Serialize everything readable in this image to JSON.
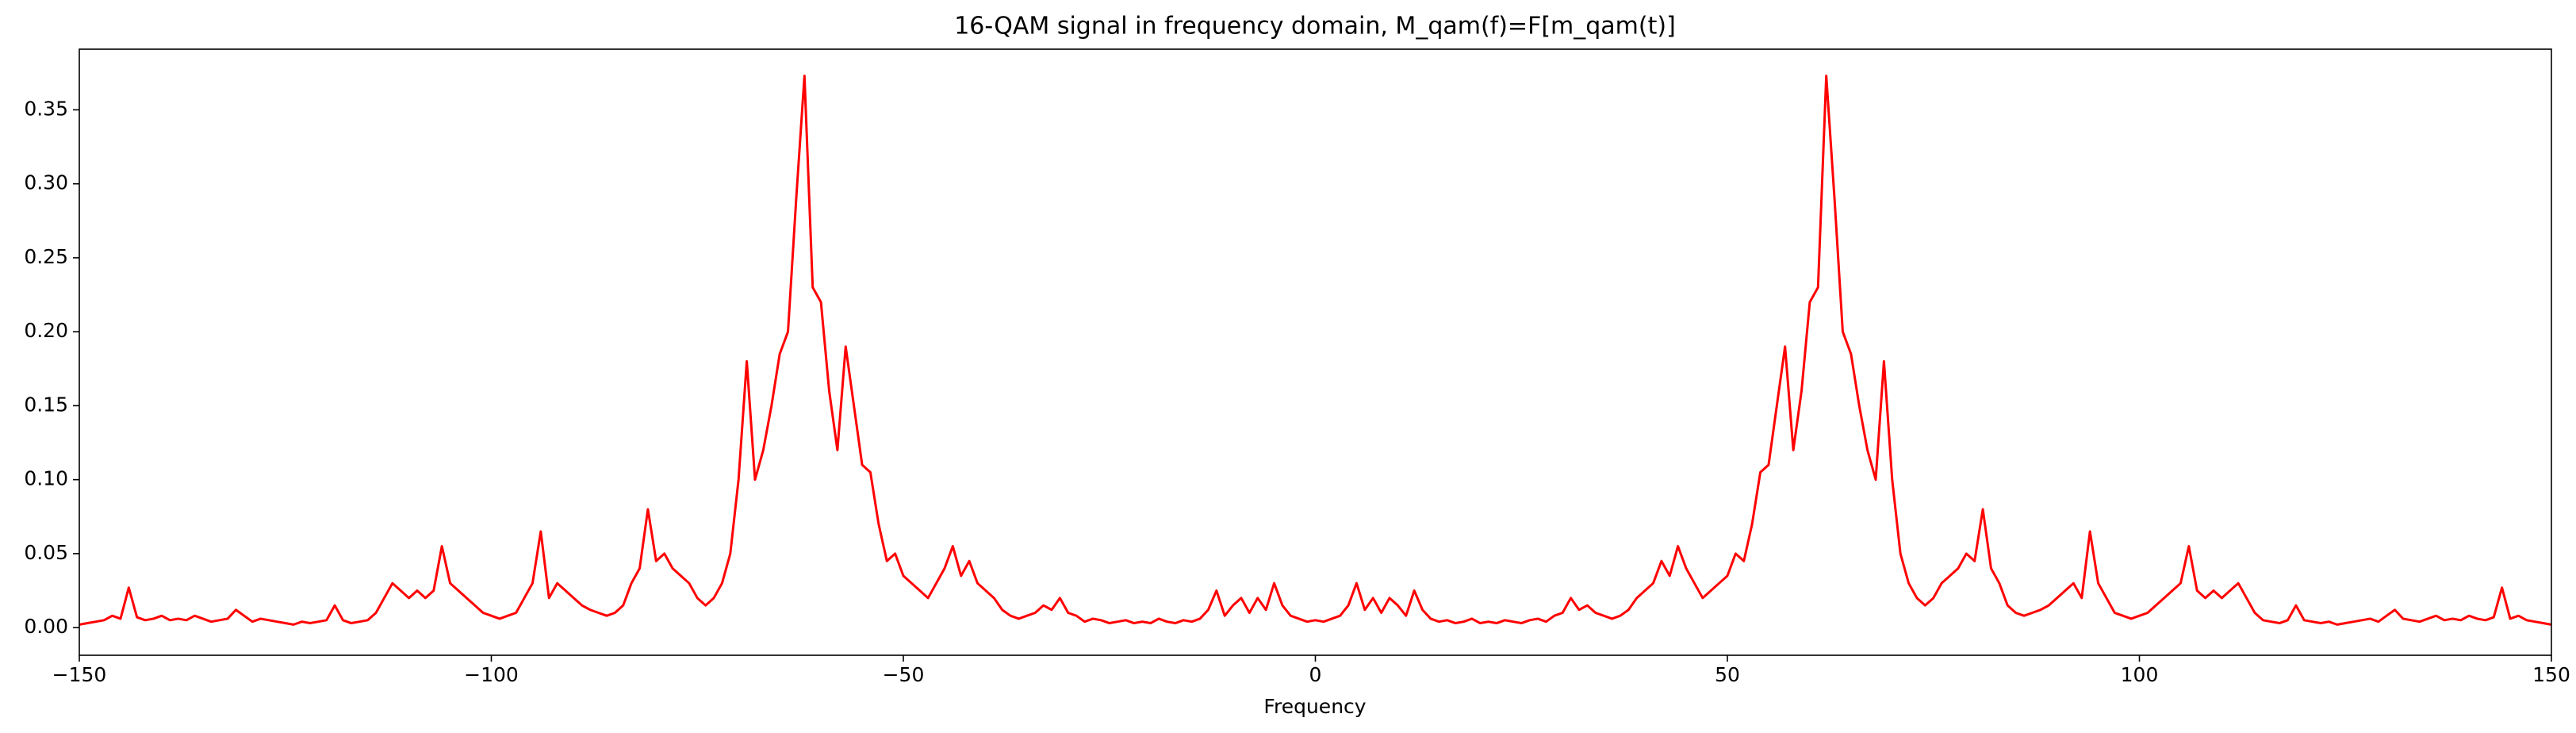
{
  "chart_data": {
    "type": "line",
    "title": "16-QAM signal in frequency domain, M_qam(f)=F[m_qam(t)]",
    "xlabel": "Frequency",
    "color": "#ff0000",
    "xlim": [
      -150,
      150
    ],
    "ylim": [
      -0.0187,
      0.391
    ],
    "xticks": [
      {
        "value": -150,
        "label": "−150"
      },
      {
        "value": -100,
        "label": "−100"
      },
      {
        "value": -50,
        "label": "−50"
      },
      0,
      50,
      100,
      150
    ],
    "yticks": [
      {
        "value": 0,
        "label": "0.00"
      },
      {
        "value": 0.05,
        "label": "0.05"
      },
      {
        "value": 0.1,
        "label": "0.10"
      },
      {
        "value": 0.15,
        "label": "0.15"
      },
      {
        "value": 0.2,
        "label": "0.20"
      },
      {
        "value": 0.25,
        "label": "0.25"
      },
      {
        "value": 0.3,
        "label": "0.30"
      },
      {
        "value": 0.35,
        "label": "0.35"
      }
    ],
    "x": [
      -150,
      -149,
      -148,
      -147,
      -146,
      -145,
      -144,
      -143,
      -142,
      -141,
      -140,
      -139,
      -138,
      -137,
      -136,
      -135,
      -134,
      -133,
      -132,
      -131,
      -130,
      -129,
      -128,
      -127,
      -126,
      -125,
      -124,
      -123,
      -122,
      -121,
      -120,
      -119,
      -118,
      -117,
      -116,
      -115,
      -114,
      -113,
      -112,
      -111,
      -110,
      -109,
      -108,
      -107,
      -106,
      -105,
      -104,
      -103,
      -102,
      -101,
      -100,
      -99,
      -98,
      -97,
      -96,
      -95,
      -94,
      -93,
      -92,
      -91,
      -90,
      -89,
      -88,
      -87,
      -86,
      -85,
      -84,
      -83,
      -82,
      -81,
      -80,
      -79,
      -78,
      -77,
      -76,
      -75,
      -74,
      -73,
      -72,
      -71,
      -70,
      -69,
      -68,
      -67,
      -66,
      -65,
      -64,
      -63,
      -62,
      -61,
      -60,
      -59,
      -58,
      -57,
      -56,
      -55,
      -54,
      -53,
      -52,
      -51,
      -50,
      -49,
      -48,
      -47,
      -46,
      -45,
      -44,
      -43,
      -42,
      -41,
      -40,
      -39,
      -38,
      -37,
      -36,
      -35,
      -34,
      -33,
      -32,
      -31,
      -30,
      -29,
      -28,
      -27,
      -26,
      -25,
      -24,
      -23,
      -22,
      -21,
      -20,
      -19,
      -18,
      -17,
      -16,
      -15,
      -14,
      -13,
      -12,
      -11,
      -10,
      -9,
      -8,
      -7,
      -6,
      -5,
      -4,
      -3,
      -2,
      -1,
      0,
      1,
      2,
      3,
      4,
      5,
      6,
      7,
      8,
      9,
      10,
      11,
      12,
      13,
      14,
      15,
      16,
      17,
      18,
      19,
      20,
      21,
      22,
      23,
      24,
      25,
      26,
      27,
      28,
      29,
      30,
      31,
      32,
      33,
      34,
      35,
      36,
      37,
      38,
      39,
      40,
      41,
      42,
      43,
      44,
      45,
      46,
      47,
      48,
      49,
      50,
      51,
      52,
      53,
      54,
      55,
      56,
      57,
      58,
      59,
      60,
      61,
      62,
      63,
      64,
      65,
      66,
      67,
      68,
      69,
      70,
      71,
      72,
      73,
      74,
      75,
      76,
      77,
      78,
      79,
      80,
      81,
      82,
      83,
      84,
      85,
      86,
      87,
      88,
      89,
      90,
      91,
      92,
      93,
      94,
      95,
      96,
      97,
      98,
      99,
      100,
      101,
      102,
      103,
      104,
      105,
      106,
      107,
      108,
      109,
      110,
      111,
      112,
      113,
      114,
      115,
      116,
      117,
      118,
      119,
      120,
      121,
      122,
      123,
      124,
      125,
      126,
      127,
      128,
      129,
      130,
      131,
      132,
      133,
      134,
      135,
      136,
      137,
      138,
      139,
      140,
      141,
      142,
      143,
      144,
      145,
      146,
      147,
      148,
      149,
      150
    ],
    "values": [
      0.002,
      0.003,
      0.004,
      0.005,
      0.008,
      0.006,
      0.027,
      0.007,
      0.005,
      0.006,
      0.008,
      0.005,
      0.006,
      0.005,
      0.008,
      0.006,
      0.004,
      0.005,
      0.006,
      0.012,
      0.008,
      0.004,
      0.006,
      0.005,
      0.004,
      0.003,
      0.002,
      0.004,
      0.003,
      0.004,
      0.005,
      0.015,
      0.005,
      0.003,
      0.004,
      0.005,
      0.01,
      0.02,
      0.03,
      0.025,
      0.02,
      0.025,
      0.02,
      0.025,
      0.055,
      0.03,
      0.025,
      0.02,
      0.015,
      0.01,
      0.008,
      0.006,
      0.008,
      0.01,
      0.02,
      0.03,
      0.065,
      0.02,
      0.03,
      0.025,
      0.02,
      0.015,
      0.012,
      0.01,
      0.008,
      0.01,
      0.015,
      0.03,
      0.04,
      0.08,
      0.045,
      0.05,
      0.04,
      0.035,
      0.03,
      0.02,
      0.015,
      0.02,
      0.03,
      0.05,
      0.1,
      0.18,
      0.1,
      0.12,
      0.15,
      0.185,
      0.2,
      0.29,
      0.373,
      0.23,
      0.22,
      0.16,
      0.12,
      0.19,
      0.15,
      0.11,
      0.105,
      0.07,
      0.045,
      0.05,
      0.035,
      0.03,
      0.025,
      0.02,
      0.03,
      0.04,
      0.055,
      0.035,
      0.045,
      0.03,
      0.025,
      0.02,
      0.012,
      0.008,
      0.006,
      0.008,
      0.01,
      0.015,
      0.012,
      0.02,
      0.01,
      0.008,
      0.004,
      0.006,
      0.005,
      0.003,
      0.004,
      0.005,
      0.003,
      0.004,
      0.003,
      0.006,
      0.004,
      0.003,
      0.005,
      0.004,
      0.006,
      0.012,
      0.025,
      0.008,
      0.015,
      0.02,
      0.01,
      0.02,
      0.012,
      0.03,
      0.015,
      0.008,
      0.006,
      0.004,
      0.005,
      0.004,
      0.006,
      0.008,
      0.015,
      0.03,
      0.012,
      0.02,
      0.01,
      0.02,
      0.015,
      0.008,
      0.025,
      0.012,
      0.006,
      0.004,
      0.005,
      0.003,
      0.004,
      0.006,
      0.003,
      0.004,
      0.003,
      0.005,
      0.004,
      0.003,
      0.005,
      0.006,
      0.004,
      0.008,
      0.01,
      0.02,
      0.012,
      0.015,
      0.01,
      0.008,
      0.006,
      0.008,
      0.012,
      0.02,
      0.025,
      0.03,
      0.045,
      0.035,
      0.055,
      0.04,
      0.03,
      0.02,
      0.025,
      0.03,
      0.035,
      0.05,
      0.045,
      0.07,
      0.105,
      0.11,
      0.15,
      0.19,
      0.12,
      0.16,
      0.22,
      0.23,
      0.373,
      0.29,
      0.2,
      0.185,
      0.15,
      0.12,
      0.1,
      0.18,
      0.1,
      0.05,
      0.03,
      0.02,
      0.015,
      0.02,
      0.03,
      0.035,
      0.04,
      0.05,
      0.045,
      0.08,
      0.04,
      0.03,
      0.015,
      0.01,
      0.008,
      0.01,
      0.012,
      0.015,
      0.02,
      0.025,
      0.03,
      0.02,
      0.065,
      0.03,
      0.02,
      0.01,
      0.008,
      0.006,
      0.008,
      0.01,
      0.015,
      0.02,
      0.025,
      0.03,
      0.055,
      0.025,
      0.02,
      0.025,
      0.02,
      0.025,
      0.03,
      0.02,
      0.01,
      0.005,
      0.004,
      0.003,
      0.005,
      0.015,
      0.005,
      0.004,
      0.003,
      0.004,
      0.002,
      0.003,
      0.004,
      0.005,
      0.006,
      0.004,
      0.008,
      0.012,
      0.006,
      0.005,
      0.004,
      0.006,
      0.008,
      0.005,
      0.006,
      0.005,
      0.008,
      0.006,
      0.005,
      0.007,
      0.027,
      0.006,
      0.008,
      0.005,
      0.004,
      0.003,
      0.002
    ]
  }
}
